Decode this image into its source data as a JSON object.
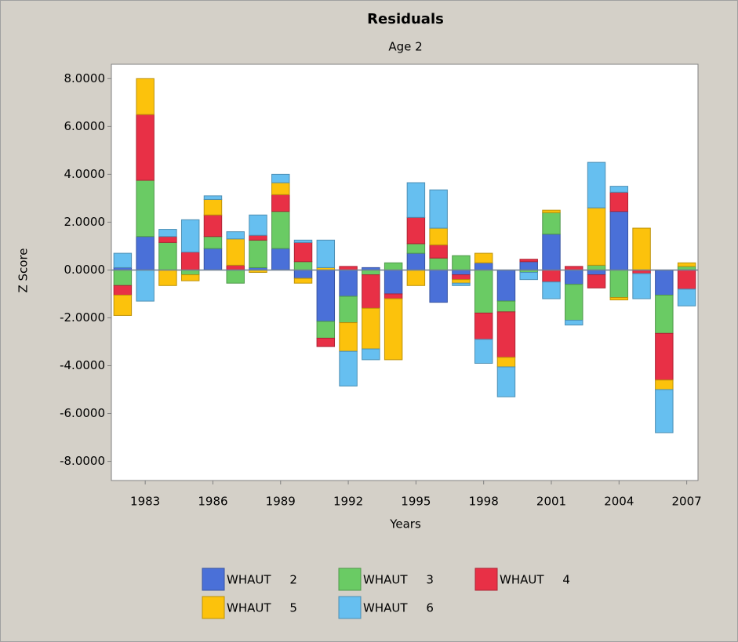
{
  "chart_data": {
    "type": "stacked-bar",
    "title": "Residuals",
    "subtitle": "Age 2",
    "x_label": "Years",
    "y_label": "Z Score",
    "categories": [
      null,
      "1983",
      null,
      null,
      "1986",
      null,
      null,
      "1989",
      null,
      null,
      "1992",
      null,
      null,
      "1995",
      null,
      null,
      "1998",
      null,
      null,
      "2001",
      null,
      null,
      "2004",
      null,
      null,
      "2007"
    ],
    "series": [
      {
        "name": "WHAUT     2",
        "color": "#4a70d8",
        "values": [
          0.1,
          1.4,
          0,
          0,
          0.9,
          0,
          0.1,
          0.9,
          -0.35,
          -2.15,
          -1.1,
          0.1,
          -1.0,
          0.7,
          -1.35,
          -0.2,
          0.3,
          -1.3,
          0.35,
          1.5,
          -0.6,
          -0.2,
          2.45,
          0,
          -1.05,
          0
        ]
      },
      {
        "name": "WHAUT     3",
        "color": "#6acb64",
        "values": [
          -0.65,
          2.35,
          1.15,
          -0.2,
          0.5,
          -0.55,
          1.15,
          1.55,
          0.35,
          -0.7,
          -1.1,
          -0.2,
          0.3,
          0.4,
          0.5,
          0.6,
          -1.8,
          -0.45,
          -0.1,
          0.9,
          -1.5,
          0.2,
          -1.15,
          0,
          -1.6,
          0.15
        ]
      },
      {
        "name": "WHAUT     4",
        "color": "#e83046",
        "values": [
          -0.4,
          2.75,
          0.25,
          0.75,
          0.9,
          0.2,
          0.2,
          0.7,
          0.8,
          -0.35,
          0.15,
          -1.4,
          -0.2,
          1.1,
          0.55,
          -0.2,
          -1.1,
          -1.9,
          0.1,
          -0.5,
          0.15,
          -0.55,
          0.8,
          -0.15,
          -1.95,
          -0.8
        ]
      },
      {
        "name": "WHAUT     5",
        "color": "#fcc20c",
        "values": [
          -0.85,
          1.5,
          -0.65,
          -0.25,
          0.65,
          1.1,
          -0.1,
          0.5,
          -0.2,
          0.1,
          -1.2,
          -1.7,
          -2.55,
          -0.65,
          0.7,
          -0.15,
          0.4,
          -0.4,
          0,
          0.1,
          0,
          2.4,
          -0.1,
          1.75,
          -0.4,
          0.15
        ]
      },
      {
        "name": "WHAUT     6",
        "color": "#66bff0",
        "values": [
          0.6,
          -1.3,
          0.3,
          1.35,
          0.15,
          0.3,
          0.85,
          0.35,
          0.1,
          1.15,
          -1.45,
          -0.45,
          0,
          1.45,
          1.6,
          -0.1,
          -1.0,
          -1.25,
          -0.3,
          -0.7,
          -0.2,
          1.9,
          0.25,
          -1.05,
          -1.8,
          -0.7
        ]
      }
    ],
    "ylim": [
      -8.8,
      8.6
    ],
    "yticks": [
      {
        "value": -8,
        "label": "-8.0000"
      },
      {
        "value": -6,
        "label": "-6.0000"
      },
      {
        "value": -4,
        "label": "-4.0000"
      },
      {
        "value": -2,
        "label": "-2.0000"
      },
      {
        "value": 0,
        "label": "0.0000"
      },
      {
        "value": 2,
        "label": "2.0000"
      },
      {
        "value": 4,
        "label": "4.0000"
      },
      {
        "value": 6,
        "label": "6.0000"
      },
      {
        "value": 8,
        "label": "8.0000"
      }
    ],
    "grid": false
  }
}
